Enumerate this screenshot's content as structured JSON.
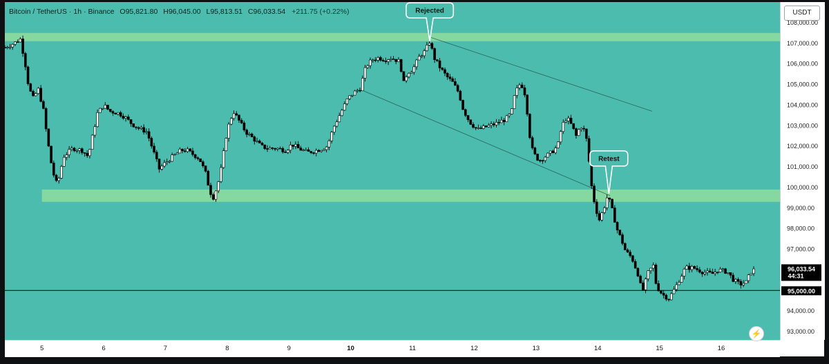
{
  "legend": {
    "symbol": "Bitcoin / TetherUS",
    "interval": "1h",
    "exchange": "Binance",
    "open_label": "O",
    "open": "95,821.80",
    "high_label": "H",
    "high": "96,045.00",
    "low_label": "L",
    "low": "95,813.51",
    "close_label": "C",
    "close": "96,033.54",
    "change": "+211.75 (+0.22%)"
  },
  "toolbar": {
    "unit_button": "USDT"
  },
  "icons": {
    "bolt": "lightning-bolt-icon"
  },
  "chart_data": {
    "type": "candlestick",
    "ylim": [
      92600,
      109000
    ],
    "xlim": [
      4.4,
      16.95
    ],
    "y_ticks": [
      "108,000.00",
      "107,000.00",
      "106,000.00",
      "105,000.00",
      "104,000.00",
      "103,000.00",
      "102,000.00",
      "101,000.00",
      "100,000.00",
      "99,000.00",
      "98,000.00",
      "97,000.00",
      "96,000.00",
      "95,000.00",
      "94,000.00",
      "93,000.00"
    ],
    "y_tick_values": [
      108000,
      107000,
      106000,
      105000,
      104000,
      103000,
      102000,
      101000,
      100000,
      99000,
      98000,
      97000,
      96000,
      95000,
      94000,
      93000
    ],
    "x_ticks": [
      "5",
      "6",
      "7",
      "8",
      "9",
      "10",
      "11",
      "12",
      "13",
      "14",
      "15",
      "16"
    ],
    "x_tick_values": [
      5,
      6,
      7,
      8,
      9,
      10,
      11,
      12,
      13,
      14,
      15,
      16
    ],
    "x_ticks_bold": [
      "10"
    ],
    "path_points": [
      [
        4.4,
        106800
      ],
      [
        4.55,
        107000
      ],
      [
        4.65,
        107200
      ],
      [
        4.72,
        106200
      ],
      [
        4.78,
        105000
      ],
      [
        4.85,
        104300
      ],
      [
        4.95,
        104800
      ],
      [
        5.0,
        104000
      ],
      [
        5.03,
        103700
      ],
      [
        5.08,
        102500
      ],
      [
        5.15,
        101200
      ],
      [
        5.2,
        100500
      ],
      [
        5.25,
        100100
      ],
      [
        5.35,
        101500
      ],
      [
        5.5,
        101900
      ],
      [
        5.65,
        101800
      ],
      [
        5.75,
        101500
      ],
      [
        5.82,
        102500
      ],
      [
        5.9,
        103600
      ],
      [
        6.0,
        104000
      ],
      [
        6.1,
        103700
      ],
      [
        6.25,
        103600
      ],
      [
        6.35,
        103400
      ],
      [
        6.45,
        103100
      ],
      [
        6.55,
        102900
      ],
      [
        6.7,
        102700
      ],
      [
        6.8,
        101800
      ],
      [
        6.9,
        100900
      ],
      [
        7.0,
        101200
      ],
      [
        7.12,
        101500
      ],
      [
        7.25,
        101800
      ],
      [
        7.35,
        101800
      ],
      [
        7.45,
        101600
      ],
      [
        7.55,
        101400
      ],
      [
        7.65,
        100700
      ],
      [
        7.72,
        99800
      ],
      [
        7.78,
        99500
      ],
      [
        7.88,
        100500
      ],
      [
        8.0,
        102800
      ],
      [
        8.1,
        103700
      ],
      [
        8.2,
        103200
      ],
      [
        8.3,
        102700
      ],
      [
        8.45,
        102300
      ],
      [
        8.55,
        102000
      ],
      [
        8.65,
        101900
      ],
      [
        8.8,
        101900
      ],
      [
        8.95,
        101800
      ],
      [
        9.05,
        102100
      ],
      [
        9.15,
        101900
      ],
      [
        9.3,
        101700
      ],
      [
        9.45,
        101800
      ],
      [
        9.55,
        101900
      ],
      [
        9.62,
        102000
      ],
      [
        9.72,
        102900
      ],
      [
        9.85,
        103700
      ],
      [
        9.95,
        104300
      ],
      [
        10.05,
        104600
      ],
      [
        10.15,
        104800
      ],
      [
        10.25,
        105900
      ],
      [
        10.35,
        106200
      ],
      [
        10.45,
        106300
      ],
      [
        10.55,
        106200
      ],
      [
        10.65,
        106300
      ],
      [
        10.8,
        106100
      ],
      [
        10.85,
        105000
      ],
      [
        10.92,
        105600
      ],
      [
        11.0,
        105700
      ],
      [
        11.12,
        106400
      ],
      [
        11.2,
        106600
      ],
      [
        11.28,
        107100
      ],
      [
        11.35,
        106300
      ],
      [
        11.45,
        105800
      ],
      [
        11.55,
        105400
      ],
      [
        11.65,
        105100
      ],
      [
        11.75,
        104600
      ],
      [
        11.82,
        103800
      ],
      [
        11.92,
        103200
      ],
      [
        12.05,
        102800
      ],
      [
        12.15,
        102900
      ],
      [
        12.25,
        103000
      ],
      [
        12.35,
        103100
      ],
      [
        12.5,
        103300
      ],
      [
        12.6,
        103600
      ],
      [
        12.65,
        104400
      ],
      [
        12.72,
        105000
      ],
      [
        12.8,
        104900
      ],
      [
        12.85,
        103900
      ],
      [
        12.9,
        102500
      ],
      [
        12.95,
        101700
      ],
      [
        13.05,
        101300
      ],
      [
        13.15,
        101500
      ],
      [
        13.25,
        101700
      ],
      [
        13.35,
        102000
      ],
      [
        13.42,
        103000
      ],
      [
        13.5,
        103400
      ],
      [
        13.58,
        103000
      ],
      [
        13.65,
        102500
      ],
      [
        13.72,
        103000
      ],
      [
        13.8,
        102700
      ],
      [
        13.85,
        101600
      ],
      [
        13.88,
        100400
      ],
      [
        13.95,
        99200
      ],
      [
        14.02,
        98400
      ],
      [
        14.1,
        99000
      ],
      [
        14.15,
        99500
      ],
      [
        14.2,
        99300
      ],
      [
        14.25,
        98700
      ],
      [
        14.32,
        97900
      ],
      [
        14.38,
        97500
      ],
      [
        14.45,
        96900
      ],
      [
        14.55,
        96600
      ],
      [
        14.65,
        95800
      ],
      [
        14.72,
        94900
      ],
      [
        14.82,
        95900
      ],
      [
        14.9,
        96200
      ],
      [
        14.95,
        95200
      ],
      [
        15.05,
        94800
      ],
      [
        15.15,
        94600
      ],
      [
        15.25,
        95100
      ],
      [
        15.35,
        95700
      ],
      [
        15.42,
        96100
      ],
      [
        15.55,
        96100
      ],
      [
        15.7,
        95900
      ],
      [
        15.85,
        95800
      ],
      [
        15.95,
        96000
      ],
      [
        16.1,
        95900
      ],
      [
        16.2,
        95500
      ],
      [
        16.3,
        95300
      ],
      [
        16.4,
        95400
      ],
      [
        16.48,
        95900
      ],
      [
        16.55,
        96033
      ]
    ],
    "annotations": [
      {
        "text": "Rejected",
        "x": 11.28,
        "y": 107100
      },
      {
        "text": "Retest",
        "x": 14.18,
        "y": 99700
      }
    ],
    "zones": [
      {
        "name": "resistance",
        "y_from": 107100,
        "y_to": 107500,
        "x_from": 4.4
      },
      {
        "name": "support",
        "y_from": 99300,
        "y_to": 99900,
        "x_from": 5.0
      }
    ],
    "channel": {
      "upper": [
        [
          11.28,
          107300
        ],
        [
          14.88,
          103700
        ]
      ],
      "lower": [
        [
          10.2,
          104700
        ],
        [
          14.2,
          99600
        ]
      ]
    },
    "horizontal_line": {
      "value": 95000,
      "label": "95,000.00"
    },
    "last_price": {
      "value": 96033.54,
      "label": "96,033.54",
      "countdown": "44:31"
    },
    "colors": {
      "background": "#4bbcae",
      "zone": "#8fdd9c",
      "up_body": "#ffffff",
      "down_body": "#000000",
      "wick": "#000000",
      "price_tag": "#000000"
    }
  }
}
